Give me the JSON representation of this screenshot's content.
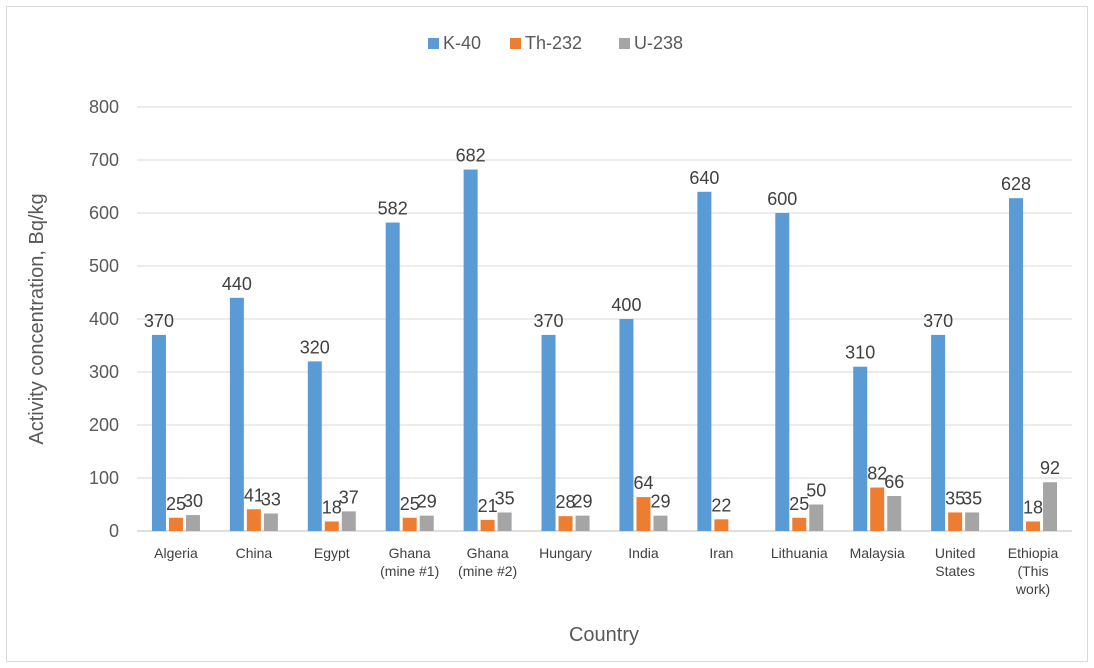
{
  "chart_data": {
    "type": "bar",
    "title": "",
    "xlabel": "Country",
    "ylabel": "Activity concentration, Bq/kg",
    "ylim": [
      0,
      800
    ],
    "yticks": [
      0,
      100,
      200,
      300,
      400,
      500,
      600,
      700,
      800
    ],
    "grid": true,
    "legend_position": "top",
    "categories": [
      [
        "Algeria"
      ],
      [
        "China"
      ],
      [
        "Egypt"
      ],
      [
        "Ghana",
        "(mine #1)"
      ],
      [
        "Ghana",
        "(mine #2)"
      ],
      [
        "Hungary"
      ],
      [
        "India"
      ],
      [
        "Iran"
      ],
      [
        "Lithuania"
      ],
      [
        "Malaysia"
      ],
      [
        "United",
        "States"
      ],
      [
        "Ethiopia",
        "(This",
        "work)"
      ]
    ],
    "series": [
      {
        "name": "K-40",
        "color": "#5b9bd5",
        "values": [
          370,
          440,
          320,
          582,
          682,
          370,
          400,
          640,
          600,
          310,
          370,
          628
        ]
      },
      {
        "name": "Th-232",
        "color": "#ed7d31",
        "values": [
          25,
          41,
          18,
          25,
          21,
          28,
          64,
          22,
          25,
          82,
          35,
          18
        ]
      },
      {
        "name": "U-238",
        "color": "#a5a5a5",
        "values": [
          30,
          33,
          37,
          29,
          35,
          29,
          29,
          null,
          50,
          66,
          35,
          92
        ]
      }
    ]
  }
}
